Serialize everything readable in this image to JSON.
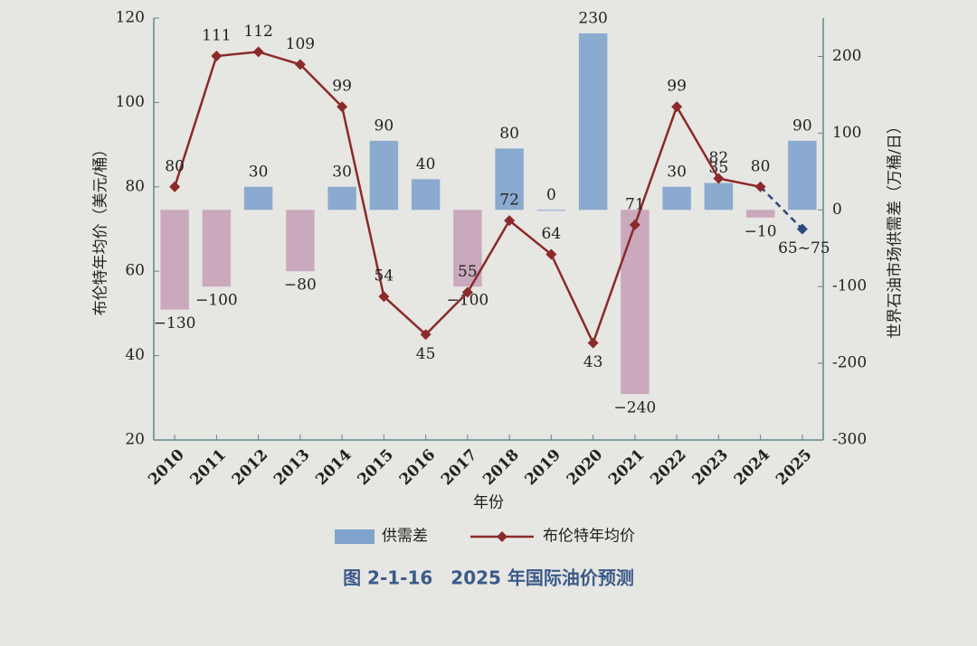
{
  "chart_data": {
    "type": "bar-line",
    "caption": "图 2-1-16　2025 年国际油价预测",
    "x_label": "年份",
    "y_label": "布伦特年均价（美元/桶）",
    "y2_label": "世界石油市场供需差（万桶/日）",
    "categories": [
      "2010",
      "2011",
      "2012",
      "2013",
      "2014",
      "2015",
      "2016",
      "2017",
      "2018",
      "2019",
      "2020",
      "2021",
      "2022",
      "2023",
      "2024",
      "2025"
    ],
    "ylim": [
      20,
      120
    ],
    "yticks": [
      20,
      40,
      60,
      80,
      100,
      120
    ],
    "y2lim": [
      -300,
      250
    ],
    "y2ticks": [
      -300,
      -200,
      -100,
      0,
      100,
      200
    ],
    "series": [
      {
        "name": "供需差",
        "axis": "y2",
        "color": "#7fa3cc",
        "negative_color": "#c6a2b8",
        "values": [
          -130,
          -100,
          30,
          -80,
          30,
          90,
          40,
          -100,
          80,
          0,
          230,
          -240,
          30,
          35,
          -10,
          90
        ],
        "value_labels": [
          "−130",
          "−100",
          "30",
          "−80",
          "30",
          "90",
          "40",
          "−100",
          "80",
          "0",
          "230",
          "−240",
          "30",
          "35",
          "−10",
          "90"
        ]
      },
      {
        "name": "布伦特年均价",
        "color": "#8b2a2a",
        "forecast_color": "#2c4a7a",
        "values": [
          80,
          111,
          112,
          109,
          99,
          54,
          45,
          55,
          72,
          64,
          43,
          71,
          99,
          82,
          80,
          70
        ],
        "value_labels": [
          "80",
          "111",
          "112",
          "109",
          "99",
          "54",
          "45",
          "55",
          "72",
          "64",
          "43",
          "71",
          "99",
          "82",
          "80",
          "65~75"
        ]
      }
    ]
  }
}
